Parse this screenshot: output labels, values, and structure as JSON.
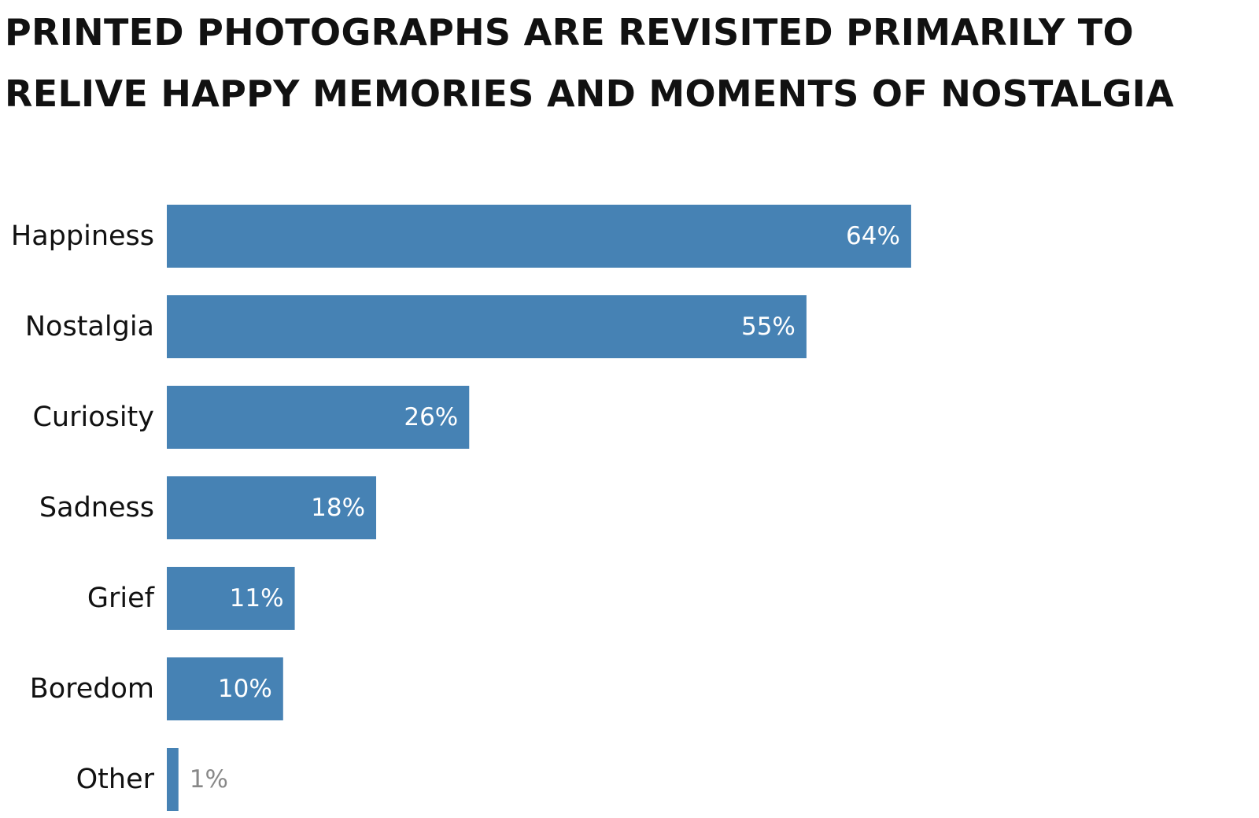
{
  "chart_data": {
    "type": "bar",
    "orientation": "horizontal",
    "title_lines": [
      "PRINTED PHOTOGRAPHS ARE REVISITED PRIMARILY TO",
      "RELIVE HAPPY MEMORIES AND MOMENTS OF NOSTALGIA"
    ],
    "categories": [
      "Happiness",
      "Nostalgia",
      "Curiosity",
      "Sadness",
      "Grief",
      "Boredom",
      "Other"
    ],
    "values": [
      64,
      55,
      26,
      18,
      11,
      10,
      1
    ],
    "value_labels": [
      "64%",
      "55%",
      "26%",
      "18%",
      "11%",
      "10%",
      "1%"
    ],
    "unit": "%",
    "xlim": [
      0,
      100
    ],
    "grid": false,
    "legend": "none",
    "colors": {
      "bar": "#4682b4",
      "label_inside": "#ffffff",
      "label_outside": "#888888",
      "text": "#111111"
    }
  }
}
